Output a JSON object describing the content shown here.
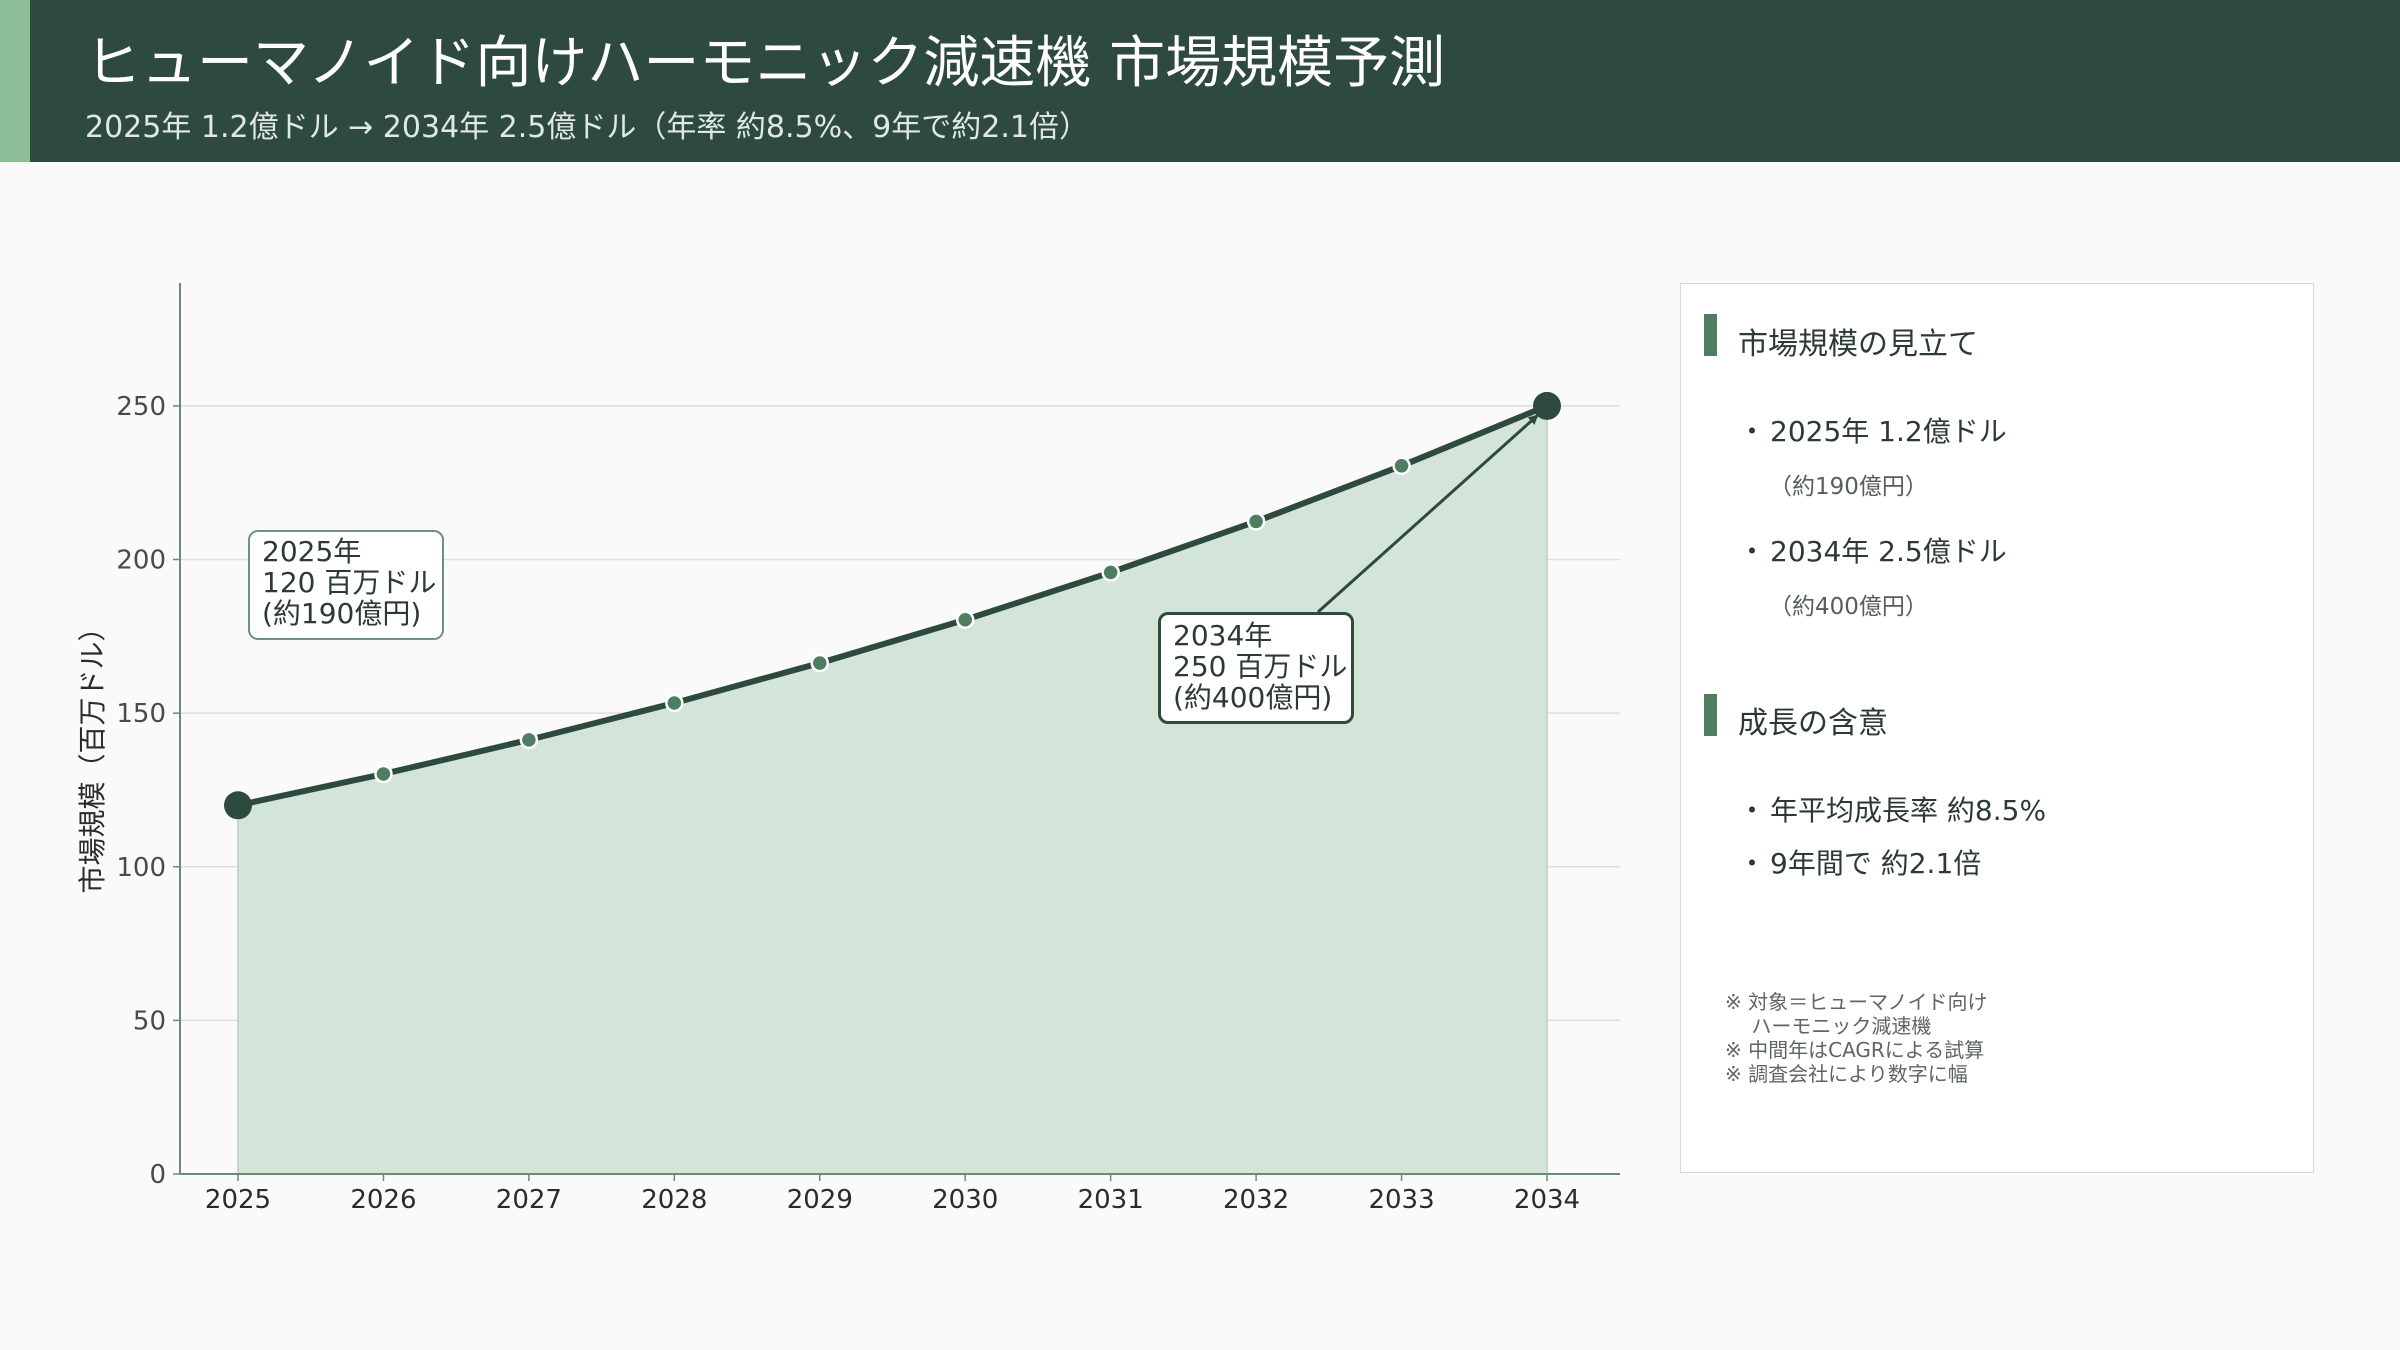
{
  "header": {
    "title": "ヒューマノイド向けハーモニック減速機 市場規模予測",
    "subtitle": "2025年 1.2億ドル → 2034年 2.5億ドル（年率 約8.5%、9年で約2.1倍）"
  },
  "colors": {
    "header_bg": "#2e4a3e",
    "accent_light": "#8bbd97",
    "line": "#2e4a3e",
    "area_fill": "#d3e4d8",
    "marker": "#4f7d60"
  },
  "chart_data": {
    "type": "area",
    "x": [
      2025,
      2026,
      2027,
      2028,
      2029,
      2030,
      2031,
      2032,
      2033,
      2034
    ],
    "values": [
      120,
      130.2,
      141.3,
      153.3,
      166.3,
      180.4,
      195.8,
      212.4,
      230.5,
      250
    ],
    "ylabel": "市場規模（百万ドル）",
    "ylim": [
      0,
      290
    ],
    "yticks": [
      0,
      50,
      100,
      150,
      200,
      250
    ],
    "grid": true,
    "annotations": [
      {
        "lines": [
          "2025年",
          "120 百万ドル",
          "(約190億円)"
        ]
      },
      {
        "lines": [
          "2034年",
          "250 百万ドル",
          "(約400億円)"
        ]
      }
    ]
  },
  "panel": {
    "section1_title": "市場規模の見立て",
    "item1": "2025年  1.2億ドル",
    "item1_sub": "（約190億円）",
    "item2": "2034年  2.5億ドル",
    "item2_sub": "（約400億円）",
    "section2_title": "成長の含意",
    "item3": "年平均成長率 約8.5%",
    "item4": "9年間で 約2.1倍",
    "bullet": "・",
    "notes": [
      "※ 対象＝ヒューマノイド向け",
      "　 ハーモニック減速機",
      "※ 中間年はCAGRによる試算",
      "※ 調査会社により数字に幅"
    ]
  }
}
